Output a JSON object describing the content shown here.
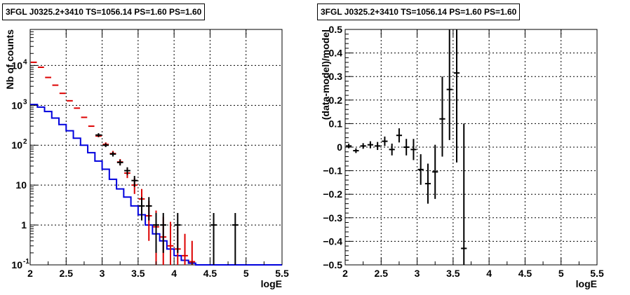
{
  "chart_data": [
    {
      "type": "step-histogram-with-errorbars",
      "title": "3FGL J0325.2+3410 TS=1056.14 PS=1.60 PS=1.60",
      "xlabel": "logE",
      "ylabel": "Nb of counts",
      "xlim": [
        2,
        5.5
      ],
      "ylim": [
        0.1,
        80000
      ],
      "yscale": "log",
      "grid": true,
      "xticks": [
        "2",
        "2.5",
        "3",
        "3.5",
        "4",
        "4.5",
        "5",
        "5.5"
      ],
      "yticks": [
        {
          "value": 0.1,
          "label": "10",
          "sup": "-1"
        },
        {
          "value": 1,
          "label": "1",
          "sup": ""
        },
        {
          "value": 10,
          "label": "10",
          "sup": ""
        },
        {
          "value": 100,
          "label": "10",
          "sup": "2"
        },
        {
          "value": 1000,
          "label": "10",
          "sup": "3"
        },
        {
          "value": 10000,
          "label": "10",
          "sup": "4"
        }
      ],
      "colors": {
        "data": "#000000",
        "model": "#dd0000",
        "component": "#0000dd"
      },
      "bin_edges": [
        2.0,
        2.1,
        2.2,
        2.3,
        2.4,
        2.5,
        2.6,
        2.7,
        2.8,
        2.9,
        3.0,
        3.1,
        3.2,
        3.3,
        3.4,
        3.5,
        3.6,
        3.7,
        3.8,
        3.9,
        4.0,
        4.1,
        4.2,
        4.3,
        4.4,
        4.5,
        4.6,
        4.7,
        4.8,
        4.9,
        5.0,
        5.1,
        5.2,
        5.3,
        5.4,
        5.5
      ],
      "blue_step": [
        1050,
        900,
        700,
        480,
        330,
        230,
        150,
        100,
        65,
        40,
        25,
        14,
        8,
        5,
        3,
        1.8,
        1.0,
        0.6,
        0.4,
        0.25,
        0.17,
        0.13,
        0.11,
        0.1,
        0.1,
        0.1,
        0.1,
        0.1,
        0.1,
        0.1,
        0.1,
        0.1,
        0.1,
        0.1,
        0.1
      ],
      "red_points": [
        {
          "x": 2.05,
          "y": 12000,
          "lo": 12000,
          "hi": 12000
        },
        {
          "x": 2.15,
          "y": 9000,
          "lo": 9000,
          "hi": 9000
        },
        {
          "x": 2.25,
          "y": 5000,
          "lo": 5000,
          "hi": 5000
        },
        {
          "x": 2.35,
          "y": 3200,
          "lo": 3200,
          "hi": 3200
        },
        {
          "x": 2.45,
          "y": 2000,
          "lo": 2000,
          "hi": 2000
        },
        {
          "x": 2.55,
          "y": 1300,
          "lo": 1300,
          "hi": 1300
        },
        {
          "x": 2.65,
          "y": 850,
          "lo": 850,
          "hi": 850
        },
        {
          "x": 2.75,
          "y": 500,
          "lo": 500,
          "hi": 500
        },
        {
          "x": 2.85,
          "y": 300,
          "lo": 300,
          "hi": 300
        },
        {
          "x": 2.95,
          "y": 170,
          "lo": 160,
          "hi": 185
        },
        {
          "x": 3.05,
          "y": 105,
          "lo": 95,
          "hi": 118
        },
        {
          "x": 3.15,
          "y": 62,
          "lo": 54,
          "hi": 72
        },
        {
          "x": 3.25,
          "y": 38,
          "lo": 32,
          "hi": 45
        },
        {
          "x": 3.35,
          "y": 20,
          "lo": 15,
          "hi": 27
        },
        {
          "x": 3.45,
          "y": 10,
          "lo": 6,
          "hi": 15
        },
        {
          "x": 3.55,
          "y": 4.5,
          "lo": 2.0,
          "hi": 8
        },
        {
          "x": 3.65,
          "y": 1.7,
          "lo": 0.4,
          "hi": 4
        },
        {
          "x": 3.75,
          "y": 0.9,
          "lo": 0.1,
          "hi": 2.3
        },
        {
          "x": 3.85,
          "y": 0.5,
          "lo": 0.1,
          "hi": 1.6
        },
        {
          "x": 3.95,
          "y": 0.3,
          "lo": 0.1,
          "hi": 1.2
        },
        {
          "x": 4.05,
          "y": 0.25,
          "lo": 0.1,
          "hi": 0.9
        },
        {
          "x": 4.15,
          "y": 0.17,
          "lo": 0.1,
          "hi": 0.6
        },
        {
          "x": 4.25,
          "y": 0.12,
          "lo": 0.1,
          "hi": 0.4
        }
      ],
      "black_points": [
        {
          "x": 2.95,
          "y": 180,
          "lo": 160,
          "hi": 200
        },
        {
          "x": 3.05,
          "y": 100,
          "lo": 90,
          "hi": 112
        },
        {
          "x": 3.15,
          "y": 60,
          "lo": 52,
          "hi": 68
        },
        {
          "x": 3.25,
          "y": 37,
          "lo": 31,
          "hi": 43
        },
        {
          "x": 3.35,
          "y": 23,
          "lo": 18,
          "hi": 28
        },
        {
          "x": 3.45,
          "y": 13,
          "lo": 9,
          "hi": 17
        },
        {
          "x": 3.55,
          "y": 3,
          "lo": 1.3,
          "hi": 5
        },
        {
          "x": 3.65,
          "y": 3,
          "lo": 1.3,
          "hi": 5
        },
        {
          "x": 3.75,
          "y": 1,
          "lo": 0.2,
          "hi": 2
        },
        {
          "x": 3.85,
          "y": 1,
          "lo": 0.2,
          "hi": 2
        },
        {
          "x": 4.05,
          "y": 1,
          "lo": 0.2,
          "hi": 2
        },
        {
          "x": 4.55,
          "y": 1,
          "lo": 0.1,
          "hi": 2
        },
        {
          "x": 4.85,
          "y": 1,
          "lo": 0.1,
          "hi": 2
        }
      ]
    },
    {
      "type": "scatter-with-errorbars",
      "title": "3FGL J0325.2+3410 TS=1056.14 PS=1.60 PS=1.60",
      "xlabel": "logE",
      "ylabel": "(data-model)/model",
      "xlim": [
        2,
        5.5
      ],
      "ylim": [
        -0.5,
        0.5
      ],
      "grid": true,
      "xticks": [
        "2",
        "2.5",
        "3",
        "3.5",
        "4",
        "4.5",
        "5",
        "5.5"
      ],
      "yticks": [
        "−0.5",
        "−0.4",
        "−0.3",
        "−0.2",
        "−0.1",
        "0",
        "0.1",
        "0.2",
        "0.3",
        "0.4",
        "0.5"
      ],
      "points": [
        {
          "x": 2.05,
          "y": 0.005,
          "lo": -0.005,
          "hi": 0.015
        },
        {
          "x": 2.15,
          "y": -0.015,
          "lo": -0.025,
          "hi": -0.005
        },
        {
          "x": 2.25,
          "y": 0.005,
          "lo": -0.007,
          "hi": 0.017
        },
        {
          "x": 2.35,
          "y": 0.01,
          "lo": -0.005,
          "hi": 0.025
        },
        {
          "x": 2.45,
          "y": 0.005,
          "lo": -0.012,
          "hi": 0.022
        },
        {
          "x": 2.55,
          "y": 0.025,
          "lo": 0.005,
          "hi": 0.045
        },
        {
          "x": 2.65,
          "y": -0.01,
          "lo": -0.035,
          "hi": 0.015
        },
        {
          "x": 2.75,
          "y": 0.05,
          "lo": 0.02,
          "hi": 0.08
        },
        {
          "x": 2.85,
          "y": 0.0,
          "lo": -0.035,
          "hi": 0.035
        },
        {
          "x": 2.95,
          "y": -0.01,
          "lo": -0.055,
          "hi": 0.035
        },
        {
          "x": 3.05,
          "y": -0.095,
          "lo": -0.16,
          "hi": -0.03
        },
        {
          "x": 3.15,
          "y": -0.155,
          "lo": -0.24,
          "hi": -0.07
        },
        {
          "x": 3.25,
          "y": -0.105,
          "lo": -0.22,
          "hi": 0.01
        },
        {
          "x": 3.35,
          "y": 0.12,
          "lo": -0.04,
          "hi": 0.3
        },
        {
          "x": 3.45,
          "y": 0.245,
          "lo": 0.03,
          "hi": 0.5
        },
        {
          "x": 3.55,
          "y": 0.315,
          "lo": -0.065,
          "hi": 0.5
        },
        {
          "x": 3.65,
          "y": -0.43,
          "lo": -0.5,
          "hi": 0.1
        }
      ]
    }
  ]
}
